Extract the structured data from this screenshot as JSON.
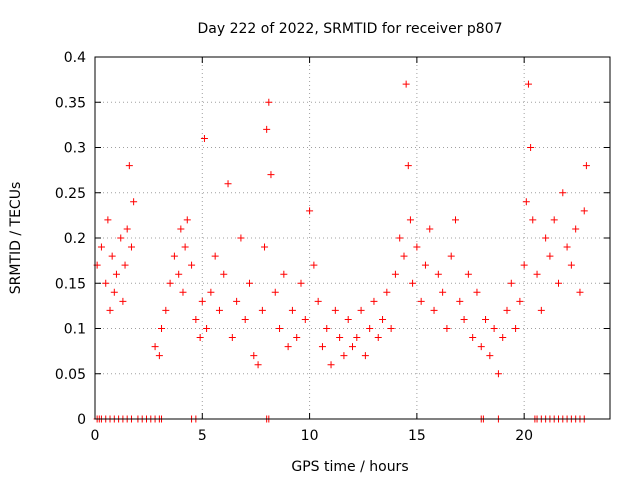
{
  "chart_data": {
    "type": "scatter",
    "title": "Day 222 of 2022, SRMTID for receiver p807",
    "xlabel": "GPS time / hours",
    "ylabel": "SRMTID / TECUs",
    "xlim": [
      0,
      24
    ],
    "ylim": [
      0,
      0.4
    ],
    "x_ticks": [
      0,
      5,
      10,
      15,
      20
    ],
    "x_tick_labels": [
      "0",
      "5",
      "10",
      "15",
      "20"
    ],
    "y_ticks": [
      0,
      0.05,
      0.1,
      0.15,
      0.2,
      0.25,
      0.3,
      0.35,
      0.4
    ],
    "y_tick_labels": [
      "0",
      "0.05",
      "0.1",
      "0.15",
      "0.2",
      "0.25",
      "0.3",
      "0.35",
      "0.4"
    ],
    "grid": true,
    "marker": "plus",
    "color": "#ff0000",
    "series": [
      {
        "name": "SRMTID",
        "x": [
          0.1,
          0.3,
          0.5,
          0.6,
          0.7,
          0.8,
          0.9,
          1.0,
          1.2,
          1.3,
          1.4,
          1.5,
          1.6,
          1.7,
          1.8,
          2.8,
          3.0,
          3.1,
          3.3,
          3.5,
          3.7,
          3.9,
          4.0,
          4.1,
          4.2,
          4.3,
          4.5,
          4.7,
          4.9,
          5.0,
          5.1,
          5.2,
          5.4,
          5.6,
          5.8,
          6.0,
          6.2,
          6.4,
          6.6,
          6.8,
          7.0,
          7.2,
          7.4,
          7.6,
          7.8,
          7.9,
          8.0,
          8.1,
          8.2,
          8.4,
          8.6,
          8.8,
          9.0,
          9.2,
          9.4,
          9.6,
          9.8,
          10.0,
          10.2,
          10.4,
          10.6,
          10.8,
          11.0,
          11.2,
          11.4,
          11.6,
          11.8,
          12.0,
          12.2,
          12.4,
          12.6,
          12.8,
          13.0,
          13.2,
          13.4,
          13.6,
          13.8,
          14.0,
          14.2,
          14.4,
          14.5,
          14.6,
          14.7,
          14.8,
          15.0,
          15.2,
          15.4,
          15.6,
          15.8,
          16.0,
          16.2,
          16.4,
          16.6,
          16.8,
          17.0,
          17.2,
          17.4,
          17.6,
          17.8,
          18.0,
          18.2,
          18.4,
          18.6,
          18.8,
          19.0,
          19.2,
          19.4,
          19.6,
          19.8,
          20.0,
          20.1,
          20.2,
          20.3,
          20.4,
          20.6,
          20.8,
          21.0,
          21.2,
          21.4,
          21.6,
          21.8,
          22.0,
          22.2,
          22.4,
          22.6,
          22.8,
          22.9
        ],
        "y": [
          0.17,
          0.19,
          0.15,
          0.22,
          0.12,
          0.18,
          0.14,
          0.16,
          0.2,
          0.13,
          0.17,
          0.21,
          0.28,
          0.19,
          0.24,
          0.08,
          0.07,
          0.1,
          0.12,
          0.15,
          0.18,
          0.16,
          0.21,
          0.14,
          0.19,
          0.22,
          0.17,
          0.11,
          0.09,
          0.13,
          0.31,
          0.1,
          0.14,
          0.18,
          0.12,
          0.16,
          0.26,
          0.09,
          0.13,
          0.2,
          0.11,
          0.15,
          0.07,
          0.06,
          0.12,
          0.19,
          0.32,
          0.35,
          0.27,
          0.14,
          0.1,
          0.16,
          0.08,
          0.12,
          0.09,
          0.15,
          0.11,
          0.23,
          0.17,
          0.13,
          0.08,
          0.1,
          0.06,
          0.12,
          0.09,
          0.07,
          0.11,
          0.08,
          0.09,
          0.12,
          0.07,
          0.1,
          0.13,
          0.09,
          0.11,
          0.14,
          0.1,
          0.16,
          0.2,
          0.18,
          0.37,
          0.28,
          0.22,
          0.15,
          0.19,
          0.13,
          0.17,
          0.21,
          0.12,
          0.16,
          0.14,
          0.1,
          0.18,
          0.22,
          0.13,
          0.11,
          0.16,
          0.09,
          0.14,
          0.08,
          0.11,
          0.07,
          0.1,
          0.05,
          0.09,
          0.12,
          0.15,
          0.1,
          0.13,
          0.17,
          0.24,
          0.37,
          0.3,
          0.22,
          0.16,
          0.12,
          0.2,
          0.18,
          0.22,
          0.15,
          0.25,
          0.19,
          0.17,
          0.21,
          0.14,
          0.23,
          0.28
        ]
      }
    ],
    "zero_x": [
      0.1,
      0.2,
      0.3,
      0.5,
      0.7,
      0.9,
      1.1,
      1.3,
      1.5,
      1.7,
      2.0,
      2.2,
      2.4,
      2.6,
      2.8,
      3.0,
      3.1,
      4.5,
      4.7,
      8.0,
      8.1,
      18.0,
      18.1,
      18.8,
      20.5,
      20.6,
      20.8,
      21.0,
      21.2,
      21.4,
      21.6,
      21.8,
      22.0,
      22.2,
      22.4,
      22.6,
      22.8
    ]
  }
}
